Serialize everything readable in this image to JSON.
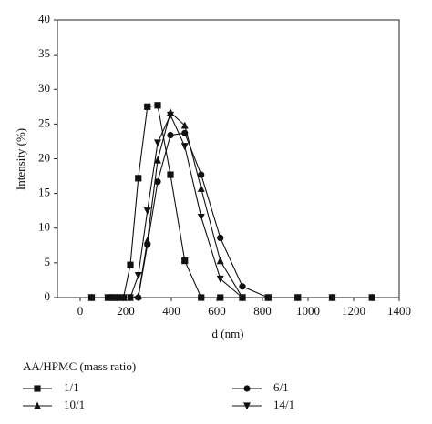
{
  "chart_data": {
    "type": "line",
    "x_label": "d (nm)",
    "y_label": "Intensity (%)",
    "legend_title": "AA/HPMC (mass ratio)",
    "x": [
      50,
      122,
      142,
      164,
      190,
      220,
      255,
      295,
      340,
      396,
      459,
      531,
      615,
      712,
      825,
      955,
      1106,
      1281
    ],
    "series": [
      {
        "name": "1/1",
        "color": "#111111",
        "marker": "square",
        "values": [
          0,
          0,
          0,
          0,
          0,
          4.7,
          17.2,
          27.5,
          27.7,
          17.7,
          5.3,
          0,
          0,
          0,
          0,
          0,
          0,
          0
        ]
      },
      {
        "name": "6/1",
        "color": "#111111",
        "marker": "circle",
        "values": [
          0,
          0,
          0,
          0,
          0,
          0,
          0,
          7.6,
          16.7,
          23.4,
          23.7,
          17.7,
          8.6,
          1.6,
          0,
          0,
          0,
          0
        ]
      },
      {
        "name": "10/1",
        "color": "#111111",
        "marker": "triangle-up",
        "values": [
          0,
          0,
          0,
          0,
          0,
          0,
          0.2,
          8.2,
          19.8,
          26.7,
          24.8,
          15.7,
          5.3,
          0,
          0,
          0,
          0,
          0
        ]
      },
      {
        "name": "14/1",
        "color": "#111111",
        "marker": "triangle-down",
        "values": [
          0,
          0,
          0,
          0,
          0,
          0,
          3.2,
          12.5,
          22.3,
          26.3,
          21.8,
          11.6,
          2.7,
          0,
          0,
          0,
          0,
          0
        ]
      }
    ],
    "xlim": [
      -100,
      1400
    ],
    "xticks": [
      0,
      200,
      400,
      600,
      800,
      1000,
      1200,
      1400
    ],
    "ylim": [
      0,
      40
    ],
    "yticks": [
      0,
      5,
      10,
      15,
      20,
      25,
      30,
      35,
      40
    ]
  }
}
